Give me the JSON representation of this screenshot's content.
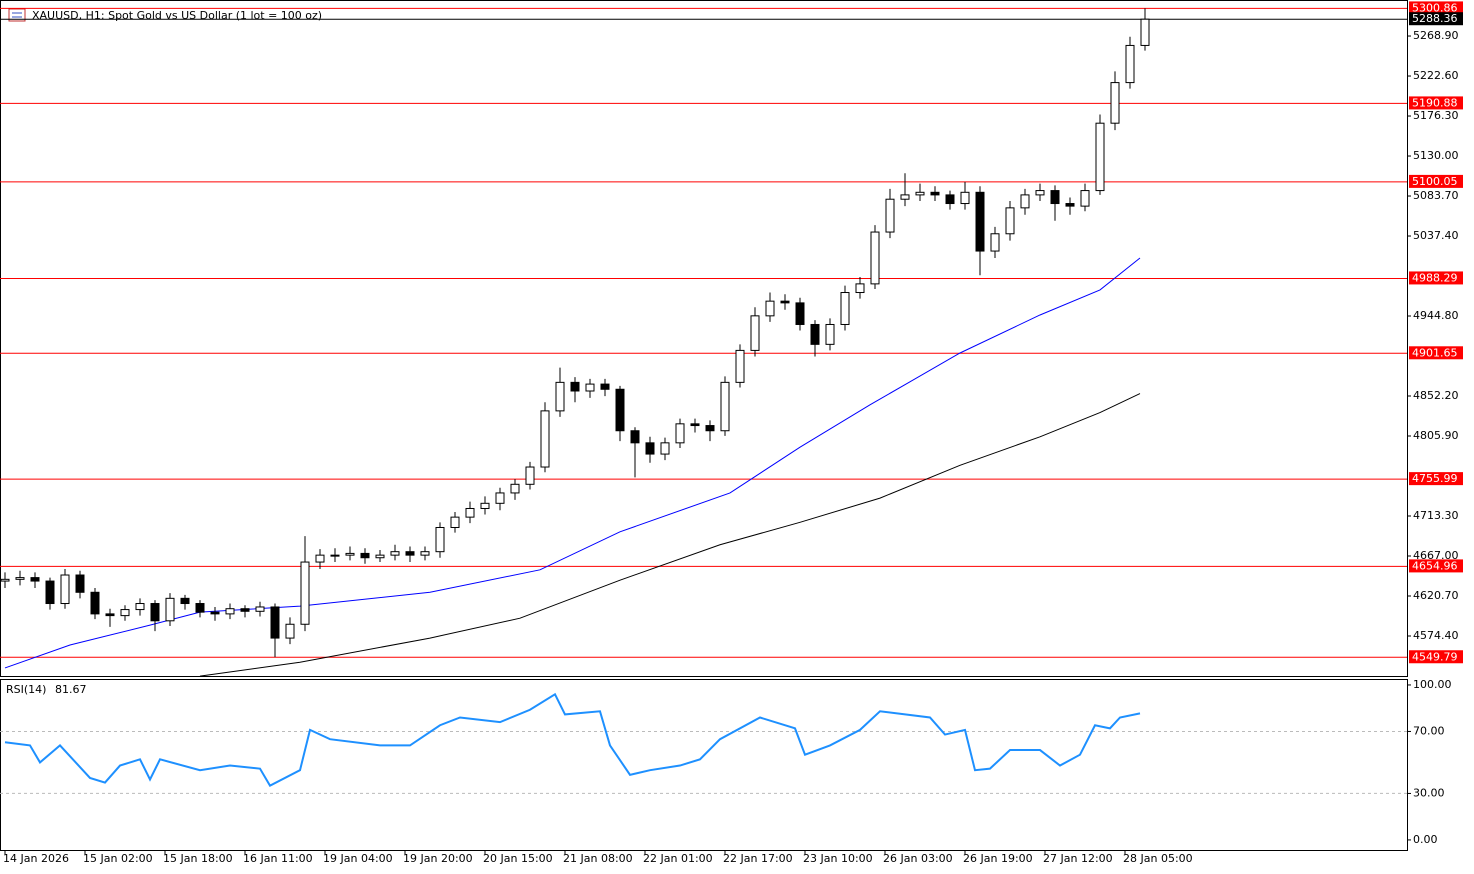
{
  "chart_data": {
    "type": "candlestick",
    "title": "XAUUSD, H1:  Spot Gold vs US Dollar (1 lot = 100 oz)",
    "x": [
      0,
      3,
      6,
      9,
      12,
      15,
      18,
      21,
      24,
      27,
      30,
      33,
      36,
      39,
      42,
      45,
      48,
      51,
      54,
      57,
      60,
      63,
      66,
      69,
      72,
      75,
      78,
      81,
      84,
      87,
      90,
      93,
      96,
      99,
      102,
      105,
      108,
      111,
      114,
      117,
      120,
      123,
      126,
      129,
      132,
      135,
      138,
      141,
      144,
      147,
      150,
      153,
      156,
      159,
      162,
      165,
      168,
      171,
      174,
      177,
      180,
      183,
      186,
      189,
      192,
      195,
      198,
      201,
      204,
      207,
      210,
      213,
      216,
      219,
      222,
      225,
      228
    ],
    "open": [
      4638,
      4640,
      4642,
      4638,
      4612,
      4645,
      4625,
      4600,
      4598,
      4605,
      4612,
      4592,
      4618,
      4612,
      4602,
      4600,
      4606,
      4603,
      4608,
      4572,
      4588,
      4660,
      4668,
      4668,
      4670,
      4665,
      4668,
      4672,
      4668,
      4672,
      4700,
      4712,
      4722,
      4728,
      4740,
      4750,
      4770,
      4835,
      4868,
      4858,
      4866,
      4860,
      4812,
      4798,
      4785,
      4798,
      4820,
      4818,
      4812,
      4868,
      4905,
      4945,
      4962,
      4960,
      4935,
      4912,
      4935,
      4972,
      4982,
      5042,
      5080,
      5085,
      5088,
      5085,
      5075,
      5088,
      5020,
      5040,
      5070,
      5085,
      5090,
      5075,
      5072,
      5090,
      5168,
      5215,
      5258
    ],
    "high": [
      4648,
      4650,
      4648,
      4642,
      4652,
      4650,
      4630,
      4606,
      4610,
      4618,
      4616,
      4624,
      4622,
      4616,
      4608,
      4612,
      4610,
      4614,
      4612,
      4596,
      4690,
      4675,
      4676,
      4678,
      4676,
      4674,
      4680,
      4678,
      4678,
      4706,
      4718,
      4730,
      4736,
      4746,
      4756,
      4776,
      4845,
      4885,
      4874,
      4872,
      4872,
      4864,
      4816,
      4805,
      4804,
      4826,
      4826,
      4824,
      4875,
      4912,
      4955,
      4972,
      4970,
      4966,
      4940,
      4942,
      4980,
      4990,
      5050,
      5092,
      5110,
      5098,
      5095,
      5090,
      5100,
      5095,
      5048,
      5078,
      5092,
      5098,
      5096,
      5082,
      5098,
      5178,
      5228,
      5268,
      5300.86
    ],
    "low": [
      4630,
      4633,
      4630,
      4605,
      4606,
      4618,
      4594,
      4585,
      4592,
      4598,
      4580,
      4586,
      4605,
      4596,
      4592,
      4594,
      4596,
      4597,
      4550,
      4565,
      4580,
      4652,
      4660,
      4662,
      4658,
      4660,
      4662,
      4660,
      4662,
      4665,
      4694,
      4705,
      4715,
      4720,
      4732,
      4744,
      4764,
      4828,
      4845,
      4850,
      4852,
      4800,
      4758,
      4775,
      4778,
      4792,
      4810,
      4800,
      4806,
      4862,
      4898,
      4938,
      4952,
      4928,
      4898,
      4905,
      4928,
      4965,
      4976,
      5035,
      5072,
      5078,
      5078,
      5068,
      5068,
      4992,
      5012,
      5032,
      5062,
      5078,
      5055,
      5062,
      5066,
      5085,
      5160,
      5208,
      5252
    ],
    "close": [
      4640,
      4642,
      4638,
      4612,
      4645,
      4625,
      4600,
      4598,
      4605,
      4612,
      4592,
      4618,
      4612,
      4602,
      4600,
      4606,
      4603,
      4608,
      4572,
      4588,
      4660,
      4668,
      4668,
      4670,
      4665,
      4668,
      4672,
      4668,
      4672,
      4700,
      4712,
      4722,
      4728,
      4740,
      4750,
      4770,
      4835,
      4868,
      4858,
      4866,
      4860,
      4812,
      4798,
      4785,
      4798,
      4820,
      4818,
      4812,
      4868,
      4905,
      4945,
      4962,
      4960,
      4935,
      4912,
      4935,
      4972,
      4982,
      5042,
      5080,
      5085,
      5088,
      5085,
      5075,
      5088,
      5020,
      5040,
      5070,
      5085,
      5090,
      5075,
      5072,
      5090,
      5168,
      5215,
      5258,
      5288.36
    ],
    "xlim": [
      -1,
      280.4
    ],
    "ylim": [
      4528.1,
      5310.6
    ],
    "yticks": [
      {
        "value": 5268.9,
        "label": "5268.90"
      },
      {
        "value": 5222.6,
        "label": "5222.60"
      },
      {
        "value": 5176.3,
        "label": "5176.30"
      },
      {
        "value": 5130,
        "label": "5130.00"
      },
      {
        "value": 5083.7,
        "label": "5083.70"
      },
      {
        "value": 5037.4,
        "label": "5037.40"
      },
      {
        "value": 4944.8,
        "label": "4944.80"
      },
      {
        "value": 4852.2,
        "label": "4852.20"
      },
      {
        "value": 4805.9,
        "label": "4805.90"
      },
      {
        "value": 4713.3,
        "label": "4713.30"
      },
      {
        "value": 4667,
        "label": "4667.00"
      },
      {
        "value": 4620.7,
        "label": "4620.70"
      },
      {
        "value": 4574.4,
        "label": "4574.40"
      }
    ],
    "xticks": [
      {
        "value": 0,
        "label": "14 Jan 2026"
      },
      {
        "value": 16,
        "label": "15 Jan 02:00"
      },
      {
        "value": 32,
        "label": "15 Jan 18:00"
      },
      {
        "value": 48,
        "label": "16 Jan 11:00"
      },
      {
        "value": 64,
        "label": "19 Jan 04:00"
      },
      {
        "value": 80,
        "label": "19 Jan 20:00"
      },
      {
        "value": 96,
        "label": "20 Jan 15:00"
      },
      {
        "value": 112,
        "label": "21 Jan 08:00"
      },
      {
        "value": 128,
        "label": "22 Jan 01:00"
      },
      {
        "value": 144,
        "label": "22 Jan 17:00"
      },
      {
        "value": 160,
        "label": "23 Jan 10:00"
      },
      {
        "value": 176,
        "label": "26 Jan 03:00"
      },
      {
        "value": 192,
        "label": "26 Jan 19:00"
      },
      {
        "value": 208,
        "label": "27 Jan 12:00"
      },
      {
        "value": 224,
        "label": "28 Jan 05:00"
      }
    ],
    "levels": {
      "color": "#ff0000",
      "values": [
        5300.86,
        5190.88,
        5100.05,
        4988.29,
        4901.65,
        4755.99,
        4654.96,
        4549.79
      ]
    },
    "current_price": {
      "color": "#000000",
      "value": 5288.36
    },
    "moving_averages": [
      {
        "color": "#0000ff",
        "x": [
          0,
          13,
          29,
          39,
          59,
          85,
          107,
          123,
          145,
          159,
          173,
          191,
          207,
          219,
          227
        ],
        "values": [
          4537.4,
          4564,
          4587,
          4602,
          4609,
          4625,
          4651,
          4695,
          4740,
          4793,
          4842,
          4902,
          4946,
          4975,
          5012
        ]
      },
      {
        "color": "#000000",
        "x": [
          39,
          59,
          85,
          103,
          123,
          143,
          159,
          175,
          191,
          207,
          219,
          227
        ],
        "values": [
          4528,
          4544,
          4572,
          4595,
          4639,
          4680,
          4706,
          4734,
          4772,
          4805,
          4833,
          4855
        ]
      }
    ],
    "rsi": {
      "name": "RSI(14)",
      "value": 81.67,
      "color": "#1e90ff",
      "x": [
        0,
        5,
        7,
        11,
        17,
        20,
        23,
        27,
        29,
        31,
        39,
        45,
        51,
        53,
        59,
        61,
        65,
        75,
        81,
        87,
        91,
        99,
        105,
        110,
        112,
        119,
        121,
        125,
        129,
        135,
        139,
        143,
        151,
        158,
        160,
        165,
        171,
        175,
        185,
        188,
        192,
        194,
        197,
        201,
        207,
        211,
        215,
        218,
        221,
        223,
        227
      ],
      "values": [
        63,
        61,
        50,
        61,
        40,
        37,
        48,
        52,
        39,
        52,
        45,
        48,
        46,
        35,
        45,
        71,
        65,
        61,
        61,
        74,
        79,
        76,
        84,
        94,
        81,
        83,
        61,
        42,
        45,
        48,
        52,
        65,
        79,
        72,
        55,
        61,
        71,
        83,
        79,
        68,
        71,
        45,
        46,
        58,
        58,
        48,
        55,
        74,
        72,
        79,
        81.67
      ],
      "ylim": [
        -6.5,
        103.2
      ],
      "yticks": [
        {
          "value": 100,
          "label": "100.00"
        },
        {
          "value": 70,
          "label": "70.00"
        },
        {
          "value": 30,
          "label": "30.00"
        },
        {
          "value": 0,
          "label": "0.00"
        }
      ],
      "dashed_levels": [
        70,
        30
      ]
    }
  }
}
